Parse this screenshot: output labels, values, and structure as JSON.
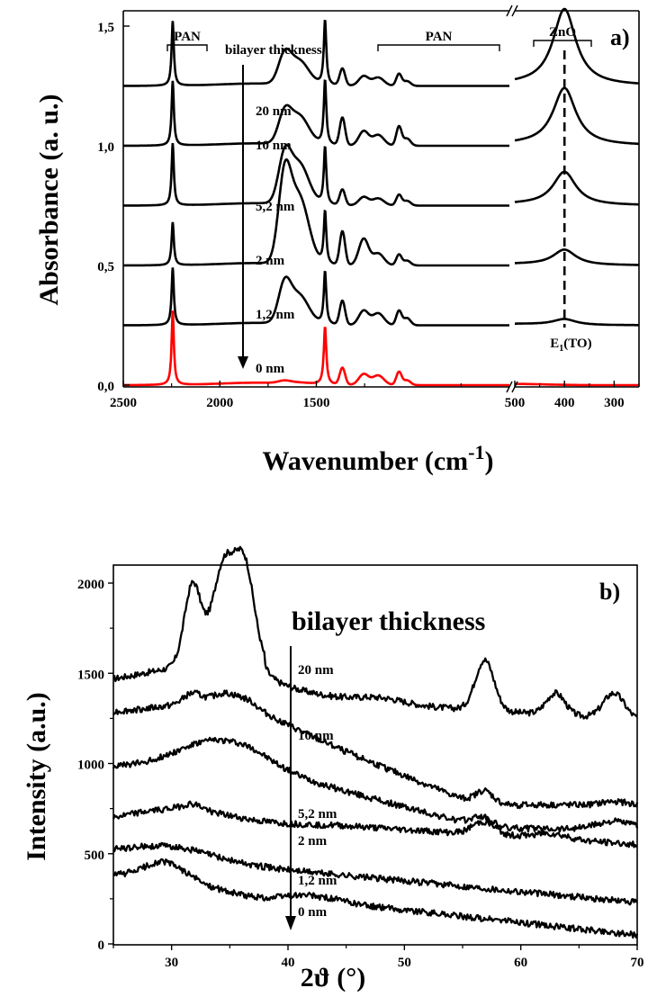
{
  "chart_data": [
    {
      "id": "a",
      "type": "line",
      "panel_label": "a)",
      "xlabel": "Wavenumber (cm",
      "xlabel_sup": "-1",
      "xlabel_close": ")",
      "ylabel": "Absorbance (a. u.)",
      "x_axis_break": true,
      "x_segments": [
        {
          "xlim": [
            2500,
            500
          ],
          "ticks": [
            2500,
            2000,
            1500
          ],
          "tick_labels": [
            "2500",
            "2000",
            "1500"
          ]
        },
        {
          "xlim": [
            500,
            250
          ],
          "ticks": [
            500,
            400,
            300
          ],
          "tick_labels": [
            "500",
            "400",
            "300"
          ]
        }
      ],
      "ylim": [
        -0.03,
        1.72
      ],
      "yticks": [
        0.0,
        0.5,
        1.0,
        1.5
      ],
      "ytick_labels": [
        "0,0",
        "0,5",
        "1,0",
        "1,5"
      ],
      "annotation_title": "bilayer thickness",
      "bracket_labels": [
        "PAN",
        "PAN",
        "ZnO"
      ],
      "mode_label": "E",
      "mode_label_sub": "1",
      "mode_label_rest": "(TO)",
      "mode_position": 400,
      "series": [
        {
          "name": "20 nm",
          "offset": 1.25,
          "color": "#000000",
          "zno": 0.32
        },
        {
          "name": "10 nm",
          "offset": 1.0,
          "color": "#000000",
          "zno": 0.24
        },
        {
          "name": "5,2 nm",
          "offset": 0.75,
          "color": "#000000",
          "zno": 0.14
        },
        {
          "name": "2 nm",
          "offset": 0.5,
          "color": "#000000",
          "zno": 0.065
        },
        {
          "name": "1,2 nm",
          "offset": 0.25,
          "color": "#000000",
          "zno": 0.025
        },
        {
          "name": "0 nm",
          "offset": 0.0,
          "color": "#ff0000",
          "zno": 0.0
        }
      ]
    },
    {
      "id": "b",
      "type": "line",
      "panel_label": "b)",
      "xlabel": "2ϑ (°)",
      "ylabel": "Intensity (a.u.)",
      "xlim": [
        25,
        70
      ],
      "xticks": [
        30,
        40,
        50,
        60,
        70
      ],
      "ylim": [
        0,
        2100
      ],
      "yticks": [
        0,
        500,
        1000,
        1500,
        2000
      ],
      "annotation_title": "bilayer thickness",
      "series": [
        {
          "name": "20 nm",
          "base": 1420,
          "peaks": "zno_strong"
        },
        {
          "name": "10 nm",
          "base": 1260,
          "peaks": "zno_medium"
        },
        {
          "name": "5,2 nm",
          "base": 980,
          "peaks": "zno_weak"
        },
        {
          "name": "2 nm",
          "base": 670,
          "peaks": "zno_faint"
        },
        {
          "name": "1,2 nm",
          "base": 490,
          "peaks": "pan"
        },
        {
          "name": "0 nm",
          "base": 380,
          "peaks": "pan"
        }
      ]
    }
  ]
}
